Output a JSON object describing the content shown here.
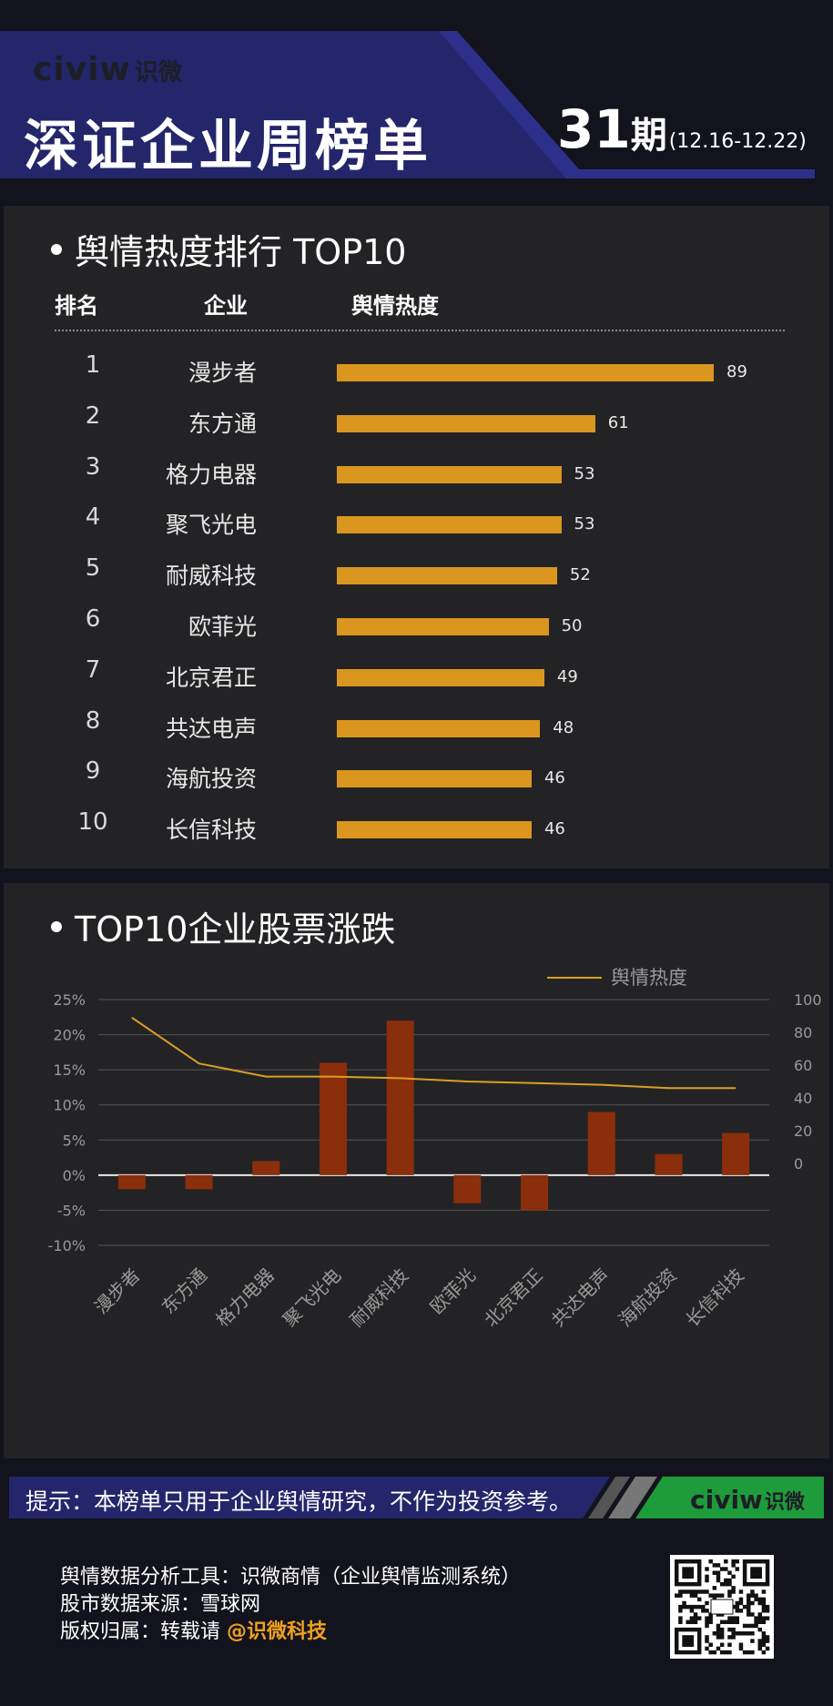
{
  "header": {
    "logo_en": "civiw",
    "logo_zh": "识微",
    "title": "深证企业周榜单",
    "issue_number": "31",
    "issue_suffix": "期",
    "date_range": "(12.16-12.22)"
  },
  "ranking": {
    "section_title": "舆情热度排行 TOP10",
    "col_rank": "排名",
    "col_company": "企业",
    "col_heat": "舆情热度",
    "bar_color": "#da961e",
    "rows": [
      {
        "rank": "1",
        "company": "漫步者",
        "value": 89
      },
      {
        "rank": "2",
        "company": "东方通",
        "value": 61
      },
      {
        "rank": "3",
        "company": "格力电器",
        "value": 53
      },
      {
        "rank": "4",
        "company": "聚飞光电",
        "value": 53
      },
      {
        "rank": "5",
        "company": "耐威科技",
        "value": 52
      },
      {
        "rank": "6",
        "company": "欧菲光",
        "value": 50
      },
      {
        "rank": "7",
        "company": "北京君正",
        "value": 49
      },
      {
        "rank": "8",
        "company": "共达电声",
        "value": 48
      },
      {
        "rank": "9",
        "company": "海航投资",
        "value": 46
      },
      {
        "rank": "10",
        "company": "长信科技",
        "value": 46
      }
    ]
  },
  "stock_section": {
    "section_title": "TOP10企业股票涨跌"
  },
  "chart_data": {
    "type": "bar",
    "categories": [
      "漫步者",
      "东方通",
      "格力电器",
      "聚飞光电",
      "耐威科技",
      "欧菲光",
      "北京君正",
      "共达电声",
      "海航投资",
      "长信科技"
    ],
    "series": [
      {
        "type": "bar",
        "axis": "left",
        "color": "#8b2e0b",
        "values": [
          -2,
          -2,
          2,
          16,
          22,
          -4,
          -5,
          9,
          3,
          6
        ]
      },
      {
        "type": "line",
        "axis": "right",
        "name": "舆情热度",
        "color": "#d9a020",
        "values": [
          89,
          61,
          53,
          53,
          52,
          50,
          49,
          48,
          46,
          46
        ]
      }
    ],
    "y_left": {
      "range": [
        -10,
        25
      ],
      "ticks": [
        "25%",
        "20%",
        "15%",
        "10%",
        "5%",
        "0%",
        "-5%",
        "-10%"
      ]
    },
    "y_right": {
      "range": [
        -50,
        100
      ],
      "ticks": [
        "100",
        "80",
        "60",
        "40",
        "20",
        "0"
      ]
    },
    "legend": "top-right",
    "grid": true
  },
  "footer": {
    "notice": "提示：本榜单只用于企业舆情研究，不作为投资参考。",
    "credit_tool": "舆情数据分析工具：识微商情（企业舆情监测系统）",
    "credit_source": "股市数据来源：雪球网",
    "credit_copyright_prefix": "版权归属：转载请 ",
    "credit_copyright_highlight": "@识微科技"
  }
}
